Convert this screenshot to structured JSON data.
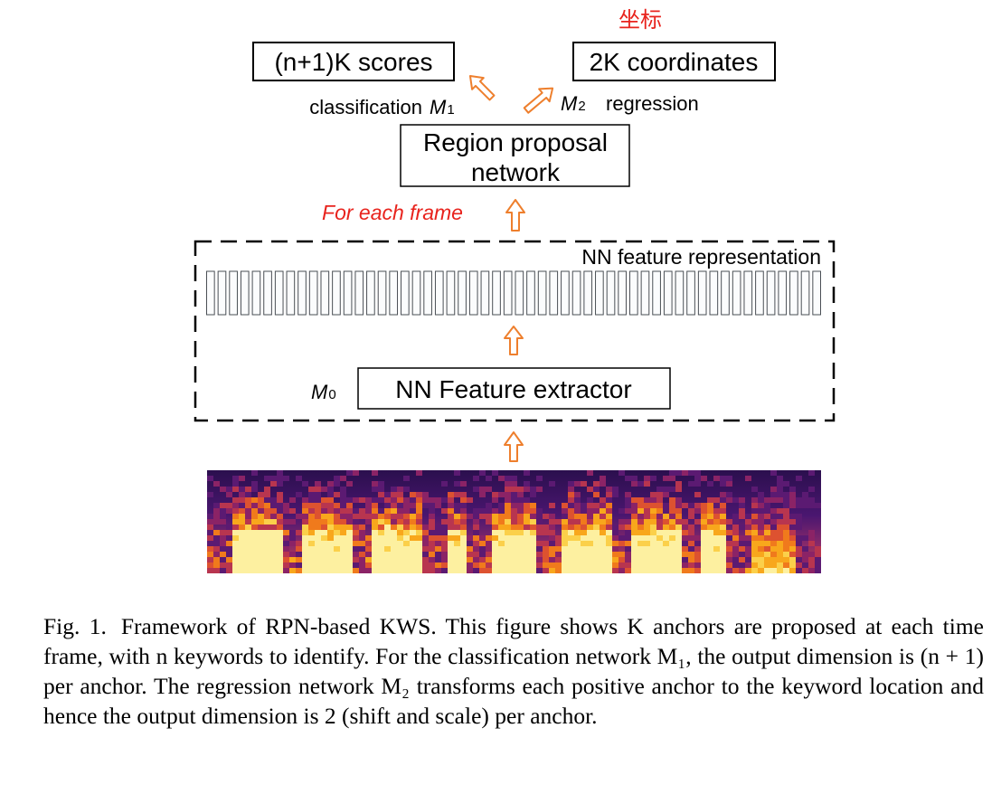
{
  "diagram": {
    "annotation_red": "坐标",
    "scores_box": "(n+1)K scores",
    "coords_box": "2K coordinates",
    "classification_label": "classification",
    "m1_label": "M",
    "m1_sub": "1",
    "m2_label": "M",
    "m2_sub": "2",
    "regression_label": "regression",
    "rpn_line1": "Region proposal",
    "rpn_line2": "network",
    "for_each_frame": "For each frame",
    "nn_feature_representation": "NN feature representation",
    "m0_label": "M",
    "m0_sub": "0",
    "feature_extractor": "NN Feature extractor",
    "feature_frame_count": 54,
    "colors": {
      "arrow": "#ee7f2d",
      "red_text": "#e8231d",
      "feature_bar": "#c8cfd6"
    }
  },
  "caption": {
    "fig_label": "Fig. 1.",
    "text": "Framework of RPN-based KWS. This figure shows K anchors are proposed at each time frame, with n keywords to identify. For the classification network M₁, the output dimension is (n + 1) per anchor. The regression network M₂ transforms each positive anchor to the keyword location and hence the output dimension is 2 (shift and scale) per anchor."
  }
}
